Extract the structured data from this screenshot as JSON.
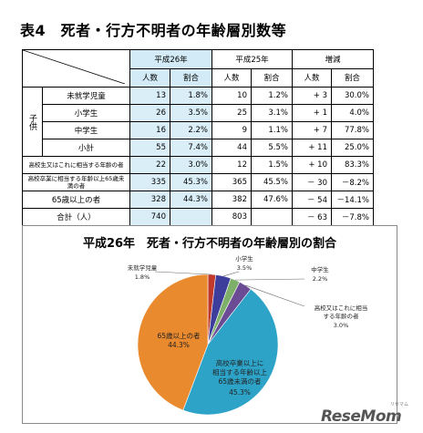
{
  "title": "表4　死者・行方不明者の年齢層別数等",
  "table": {
    "header_groups": [
      "平成26年",
      "平成25年",
      "増減"
    ],
    "subheaders": [
      "人数",
      "割合",
      "人数",
      "割合",
      "人数",
      "割合"
    ],
    "kids_label": "子供",
    "rows": [
      {
        "label": "未就学児童",
        "v": [
          "13",
          "1.8%",
          "10",
          "1.2%",
          "+ 3",
          "30.0%"
        ]
      },
      {
        "label": "小学生",
        "v": [
          "26",
          "3.5%",
          "25",
          "3.1%",
          "+ 1",
          "4.0%"
        ]
      },
      {
        "label": "中学生",
        "v": [
          "16",
          "2.2%",
          "9",
          "1.1%",
          "+ 7",
          "77.8%"
        ]
      },
      {
        "label": "小計",
        "v": [
          "55",
          "7.4%",
          "44",
          "5.5%",
          "+ 11",
          "25.0%"
        ]
      },
      {
        "label": "高校生又はこれに相当する年齢の者",
        "v": [
          "22",
          "3.0%",
          "12",
          "1.5%",
          "+ 10",
          "83.3%"
        ]
      },
      {
        "label": "高校卒業に相当する年齢以上65歳未満の者",
        "v": [
          "335",
          "45.3%",
          "365",
          "45.5%",
          "－ 30",
          "－8.2%"
        ]
      },
      {
        "label": "65歳以上の者",
        "v": [
          "328",
          "44.3%",
          "382",
          "47.6%",
          "－ 54",
          "－14.1%"
        ]
      },
      {
        "label": "合計（人）",
        "v": [
          "740",
          "",
          "803",
          "",
          "－ 63",
          "－7.8%"
        ]
      }
    ]
  },
  "chart_data": {
    "type": "pie",
    "title": "平成26年　死者・行方不明者の年齢層別の割合",
    "slices": [
      {
        "name": "未就学児童",
        "value": 1.8,
        "label": "1.8%",
        "color": "#c0392b"
      },
      {
        "name": "小学生",
        "value": 3.5,
        "label": "3.5%",
        "color": "#3d3e9b"
      },
      {
        "name": "中学生",
        "value": 2.2,
        "label": "2.2%",
        "color": "#7fb069"
      },
      {
        "name": "高校又はこれに相当する年齢の者",
        "value": 3.0,
        "label": "3.0%",
        "color": "#6b4b94"
      },
      {
        "name": "高校卒業以上に相当する年齢以上65歳未満の者",
        "value": 45.3,
        "label": "45.3%",
        "color": "#2ea3c8"
      },
      {
        "name": "65歳以上の者",
        "value": 44.3,
        "label": "44.3%",
        "color": "#ea8a2e"
      }
    ]
  },
  "logo": {
    "text": "ReseMom",
    "sub": "リセマム"
  }
}
